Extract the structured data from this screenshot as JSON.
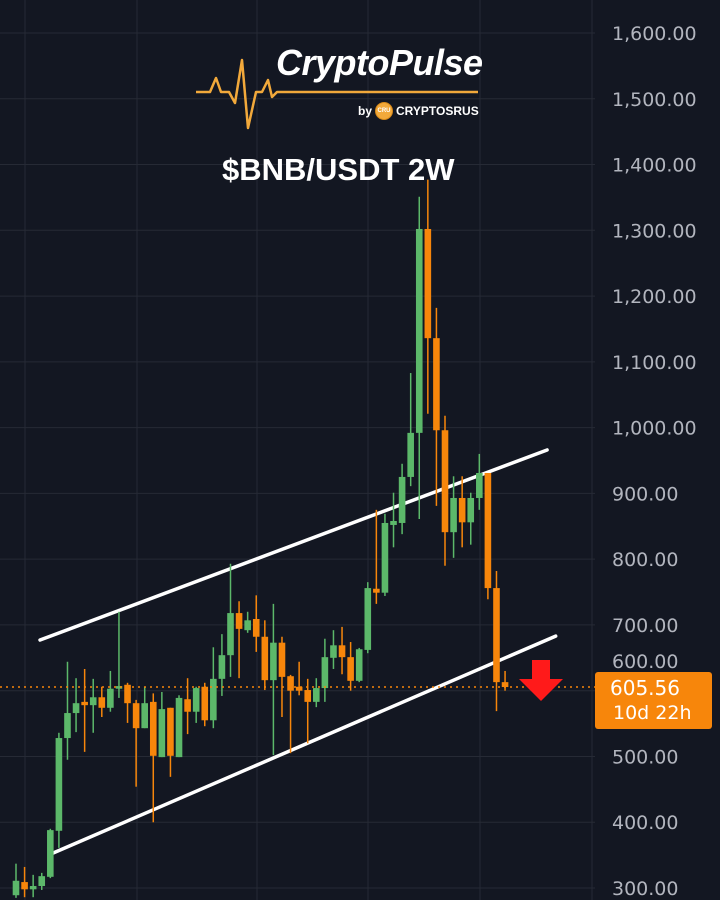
{
  "branding": {
    "title": "CryptoPulse",
    "by": "by",
    "coin_text": "CRU",
    "company": "CRYPTOSRUS",
    "accent": "#f2a93b"
  },
  "chart_data": {
    "type": "candlestick",
    "title": "$BNB/USDT 2W",
    "ylim": [
      300,
      1600
    ],
    "yticks": [
      300,
      400,
      500,
      600,
      700,
      800,
      900,
      1000,
      1100,
      1200,
      1300,
      1400,
      1500,
      1600
    ],
    "ytick_labels": [
      "300.00",
      "400.00",
      "500.00",
      "600.00",
      "700.00",
      "800.00",
      "900.00",
      "1,000.00",
      "1,100.00",
      "1,200.00",
      "1,300.00",
      "1,400.00",
      "1,500.00",
      "1,600.00"
    ],
    "grid": true,
    "colors": {
      "up": "#5cb86a",
      "down": "#f7860b",
      "background": "#131722",
      "trendline": "#ffffff",
      "arrow": "#ff1a1a"
    },
    "candles_ohlc": [
      [
        289,
        337,
        285,
        311
      ],
      [
        309,
        332,
        286,
        298
      ],
      [
        298,
        320,
        286,
        303
      ],
      [
        303,
        323,
        297,
        318
      ],
      [
        317,
        390,
        315,
        388
      ],
      [
        387,
        536,
        361,
        528
      ],
      [
        528,
        644,
        495,
        566
      ],
      [
        566,
        619,
        537,
        581
      ],
      [
        583,
        633,
        507,
        578
      ],
      [
        578,
        618,
        536,
        590
      ],
      [
        590,
        606,
        560,
        574
      ],
      [
        574,
        630,
        568,
        603
      ],
      [
        603,
        720,
        589,
        607
      ],
      [
        609,
        612,
        551,
        581
      ],
      [
        581,
        586,
        454,
        543
      ],
      [
        543,
        606,
        543,
        581
      ],
      [
        583,
        596,
        400,
        501
      ],
      [
        499,
        598,
        499,
        572
      ],
      [
        574,
        574,
        469,
        501
      ],
      [
        499,
        593,
        499,
        589
      ],
      [
        587,
        619,
        534,
        568
      ],
      [
        568,
        606,
        551,
        604
      ],
      [
        606,
        612,
        546,
        555
      ],
      [
        555,
        666,
        543,
        618
      ],
      [
        618,
        686,
        592,
        654
      ],
      [
        654,
        793,
        621,
        718
      ],
      [
        718,
        736,
        619,
        694
      ],
      [
        692,
        720,
        688,
        707
      ],
      [
        709,
        745,
        659,
        682
      ],
      [
        682,
        707,
        601,
        616
      ],
      [
        616,
        732,
        502,
        673
      ],
      [
        673,
        682,
        560,
        621
      ],
      [
        622,
        624,
        505,
        600
      ],
      [
        606,
        644,
        593,
        600
      ],
      [
        601,
        618,
        520,
        583
      ],
      [
        583,
        619,
        575,
        604
      ],
      [
        604,
        679,
        583,
        651
      ],
      [
        650,
        692,
        633,
        669
      ],
      [
        669,
        697,
        625,
        651
      ],
      [
        651,
        674,
        600,
        615
      ],
      [
        615,
        665,
        613,
        663
      ],
      [
        662,
        765,
        657,
        756
      ],
      [
        755,
        875,
        732,
        749
      ],
      [
        749,
        869,
        744,
        855
      ],
      [
        852,
        901,
        818,
        858
      ],
      [
        855,
        945,
        838,
        925
      ],
      [
        925,
        1083,
        911,
        992
      ],
      [
        992,
        1351,
        861,
        1302
      ],
      [
        1302,
        1377,
        1021,
        1136
      ],
      [
        1136,
        1182,
        881,
        996
      ],
      [
        996,
        1018,
        790,
        841
      ],
      [
        841,
        926,
        802,
        893
      ],
      [
        893,
        926,
        818,
        856
      ],
      [
        856,
        901,
        822,
        893
      ],
      [
        893,
        960,
        875,
        931
      ],
      [
        931,
        931,
        739,
        756
      ],
      [
        756,
        782,
        569,
        613
      ],
      [
        613,
        630,
        600,
        605.56
      ]
    ],
    "trendlines": [
      {
        "from": {
          "candle": 2.8,
          "price": 677
        },
        "to": {
          "candle": 61.9,
          "price": 966
        }
      },
      {
        "from": {
          "candle": 4.3,
          "price": 353
        },
        "to": {
          "candle": 62.9,
          "price": 683
        }
      }
    ],
    "last_price": 605.56,
    "last_price_label": "605.56",
    "countdown": "10d 22h",
    "annotation": "down-arrow-icon"
  }
}
